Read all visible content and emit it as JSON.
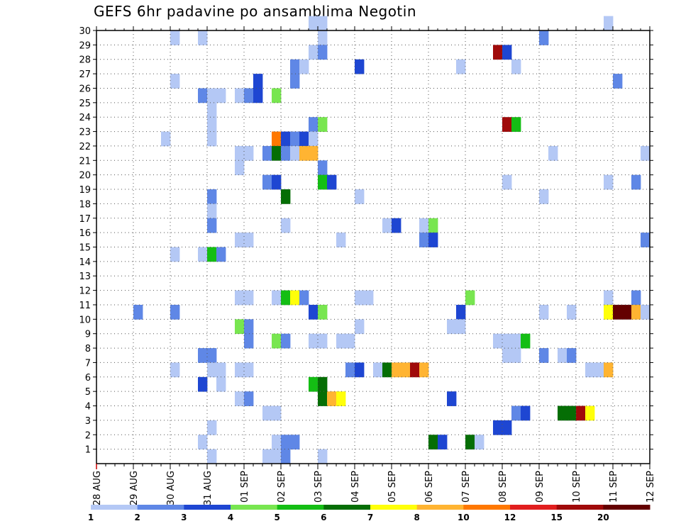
{
  "title": "GEFS 6hr padavine po ansamblima Negotin",
  "chart_data": {
    "type": "heatmap",
    "title": "GEFS 6hr padavine po ansamblima Negotin",
    "xlabel": "",
    "ylabel": "",
    "x_ticks": [
      "28 AUG",
      "29 AUG",
      "30 AUG",
      "31 AUG",
      "01 SEP",
      "02 SEP",
      "03 SEP",
      "04 SEP",
      "05 SEP",
      "06 SEP",
      "07 SEP",
      "08 SEP",
      "09 SEP",
      "10 SEP",
      "11 SEP",
      "12 SEP"
    ],
    "x_range_days": [
      0,
      15
    ],
    "y_ticks": [
      1,
      2,
      3,
      4,
      5,
      6,
      7,
      8,
      9,
      10,
      11,
      12,
      13,
      14,
      15,
      16,
      17,
      18,
      19,
      20,
      21,
      22,
      23,
      24,
      25,
      26,
      27,
      28,
      29,
      30
    ],
    "y_range": [
      0,
      30
    ],
    "grid": true,
    "legend": {
      "placement": "bottom",
      "labels": [
        "1",
        "2",
        "3",
        "4",
        "5",
        "6",
        "7",
        "8",
        "10",
        "12",
        "15",
        "20"
      ],
      "colors": [
        "#b4c8f5",
        "#5f87e6",
        "#1e46d2",
        "#78e650",
        "#14be14",
        "#056e05",
        "#ffff0a",
        "#ffb432",
        "#ff7800",
        "#e11e1e",
        "#a00a0a",
        "#640000"
      ]
    },
    "cells_note": "each cell: [day_offset_from_28_AUG, member_row, color_class_index]",
    "cells": [
      [
        2.0,
        29,
        0
      ],
      [
        2.75,
        29,
        0
      ],
      [
        6.0,
        29,
        0
      ],
      [
        12.0,
        29,
        1
      ],
      [
        5.75,
        28,
        0
      ],
      [
        6.0,
        28,
        1
      ],
      [
        10.75,
        28,
        10
      ],
      [
        11.0,
        28,
        2
      ],
      [
        5.25,
        27,
        1
      ],
      [
        5.5,
        27,
        0
      ],
      [
        7.0,
        27,
        2
      ],
      [
        9.75,
        27,
        0
      ],
      [
        11.25,
        27,
        0
      ],
      [
        2.0,
        26,
        0
      ],
      [
        5.25,
        26,
        1
      ],
      [
        4.25,
        26,
        2
      ],
      [
        14.0,
        26,
        1
      ],
      [
        2.75,
        25,
        1
      ],
      [
        3.0,
        25,
        0
      ],
      [
        3.25,
        25,
        0
      ],
      [
        3.75,
        25,
        0
      ],
      [
        4.0,
        25,
        1
      ],
      [
        4.25,
        25,
        2
      ],
      [
        4.75,
        25,
        3
      ],
      [
        3.0,
        24,
        0
      ],
      [
        3.0,
        23,
        0
      ],
      [
        5.75,
        23,
        1
      ],
      [
        6.0,
        23,
        3
      ],
      [
        11.0,
        23,
        10
      ],
      [
        11.25,
        23,
        4
      ],
      [
        1.75,
        22,
        0
      ],
      [
        3.0,
        22,
        0
      ],
      [
        4.75,
        22,
        8
      ],
      [
        5.0,
        22,
        2
      ],
      [
        5.25,
        22,
        1
      ],
      [
        5.5,
        22,
        2
      ],
      [
        5.75,
        22,
        0
      ],
      [
        3.75,
        21,
        0
      ],
      [
        4.0,
        21,
        0
      ],
      [
        4.5,
        21,
        1
      ],
      [
        4.75,
        21,
        5
      ],
      [
        5.0,
        21,
        1
      ],
      [
        5.25,
        21,
        0
      ],
      [
        5.5,
        21,
        7
      ],
      [
        5.75,
        21,
        7
      ],
      [
        12.25,
        21,
        0
      ],
      [
        14.75,
        21,
        0
      ],
      [
        3.75,
        20,
        0
      ],
      [
        6.0,
        20,
        1
      ],
      [
        4.5,
        19,
        1
      ],
      [
        4.75,
        19,
        2
      ],
      [
        6.0,
        19,
        4
      ],
      [
        6.25,
        19,
        2
      ],
      [
        11.0,
        19,
        0
      ],
      [
        13.75,
        19,
        0
      ],
      [
        14.5,
        19,
        1
      ],
      [
        3.0,
        18,
        1
      ],
      [
        5.0,
        18,
        5
      ],
      [
        7.0,
        18,
        0
      ],
      [
        12.0,
        18,
        0
      ],
      [
        3.0,
        17,
        0
      ],
      [
        3.0,
        16,
        1
      ],
      [
        5.0,
        16,
        0
      ],
      [
        7.75,
        16,
        0
      ],
      [
        8.0,
        16,
        2
      ],
      [
        8.75,
        16,
        0
      ],
      [
        9.0,
        16,
        3
      ],
      [
        3.75,
        15,
        0
      ],
      [
        4.0,
        15,
        0
      ],
      [
        6.5,
        15,
        0
      ],
      [
        8.75,
        15,
        1
      ],
      [
        9.0,
        15,
        2
      ],
      [
        14.75,
        15,
        1
      ],
      [
        2.0,
        14,
        0
      ],
      [
        2.75,
        14,
        0
      ],
      [
        3.0,
        14,
        4
      ],
      [
        3.25,
        14,
        1
      ],
      [
        3.75,
        11,
        0
      ],
      [
        4.0,
        11,
        0
      ],
      [
        4.75,
        11,
        0
      ],
      [
        5.0,
        11,
        4
      ],
      [
        5.25,
        11,
        6
      ],
      [
        5.5,
        11,
        1
      ],
      [
        7.0,
        11,
        0
      ],
      [
        7.25,
        11,
        0
      ],
      [
        10.0,
        11,
        3
      ],
      [
        13.75,
        11,
        0
      ],
      [
        14.5,
        11,
        1
      ],
      [
        1.0,
        10,
        1
      ],
      [
        2.0,
        10,
        1
      ],
      [
        5.75,
        10,
        2
      ],
      [
        6.0,
        10,
        3
      ],
      [
        9.75,
        10,
        2
      ],
      [
        12.0,
        10,
        0
      ],
      [
        12.75,
        10,
        0
      ],
      [
        13.75,
        10,
        6
      ],
      [
        14.0,
        10,
        11
      ],
      [
        14.25,
        10,
        11
      ],
      [
        14.5,
        10,
        7
      ],
      [
        14.75,
        10,
        0
      ],
      [
        3.75,
        9,
        3
      ],
      [
        4.0,
        9,
        1
      ],
      [
        7.0,
        9,
        0
      ],
      [
        9.5,
        9,
        0
      ],
      [
        9.75,
        9,
        0
      ],
      [
        4.0,
        8,
        1
      ],
      [
        4.75,
        8,
        3
      ],
      [
        5.0,
        8,
        1
      ],
      [
        5.75,
        8,
        0
      ],
      [
        6.0,
        8,
        0
      ],
      [
        6.5,
        8,
        0
      ],
      [
        6.75,
        8,
        0
      ],
      [
        10.75,
        8,
        0
      ],
      [
        11.0,
        8,
        0
      ],
      [
        11.25,
        8,
        0
      ],
      [
        11.5,
        8,
        4
      ],
      [
        2.75,
        7,
        1
      ],
      [
        3.0,
        7,
        1
      ],
      [
        11.0,
        7,
        0
      ],
      [
        11.25,
        7,
        0
      ],
      [
        12.0,
        7,
        1
      ],
      [
        12.5,
        7,
        0
      ],
      [
        12.75,
        7,
        1
      ],
      [
        2.0,
        6,
        0
      ],
      [
        3.0,
        6,
        0
      ],
      [
        3.25,
        6,
        0
      ],
      [
        3.75,
        6,
        0
      ],
      [
        4.0,
        6,
        0
      ],
      [
        6.75,
        6,
        1
      ],
      [
        7.0,
        6,
        2
      ],
      [
        7.5,
        6,
        0
      ],
      [
        7.75,
        6,
        5
      ],
      [
        8.0,
        6,
        7
      ],
      [
        8.25,
        6,
        7
      ],
      [
        8.5,
        6,
        10
      ],
      [
        8.75,
        6,
        7
      ],
      [
        13.25,
        6,
        0
      ],
      [
        13.5,
        6,
        0
      ],
      [
        13.75,
        6,
        7
      ],
      [
        2.75,
        5,
        2
      ],
      [
        3.25,
        5,
        0
      ],
      [
        5.75,
        5,
        4
      ],
      [
        6.0,
        5,
        5
      ],
      [
        3.75,
        4,
        0
      ],
      [
        4.0,
        4,
        1
      ],
      [
        6.0,
        4,
        5
      ],
      [
        6.25,
        4,
        7
      ],
      [
        6.5,
        4,
        6
      ],
      [
        9.5,
        4,
        2
      ],
      [
        4.5,
        3,
        0
      ],
      [
        4.75,
        3,
        0
      ],
      [
        11.25,
        3,
        1
      ],
      [
        11.5,
        3,
        2
      ],
      [
        12.5,
        3,
        5
      ],
      [
        12.75,
        3,
        5
      ],
      [
        13.0,
        3,
        10
      ],
      [
        13.25,
        3,
        6
      ],
      [
        3.0,
        2,
        0
      ],
      [
        10.75,
        2,
        2
      ],
      [
        11.0,
        2,
        2
      ],
      [
        2.75,
        1,
        0
      ],
      [
        4.75,
        1,
        0
      ],
      [
        5.0,
        1,
        1
      ],
      [
        5.25,
        1,
        1
      ],
      [
        9.0,
        1,
        5
      ],
      [
        9.25,
        1,
        2
      ],
      [
        10.0,
        1,
        5
      ],
      [
        10.25,
        1,
        0
      ],
      [
        3.0,
        0,
        0
      ],
      [
        4.5,
        0,
        0
      ],
      [
        4.75,
        0,
        0
      ],
      [
        5.0,
        0,
        1
      ],
      [
        6.0,
        0,
        0
      ],
      [
        5.75,
        30,
        0
      ],
      [
        6.0,
        30,
        0
      ],
      [
        13.75,
        30,
        0
      ]
    ]
  }
}
